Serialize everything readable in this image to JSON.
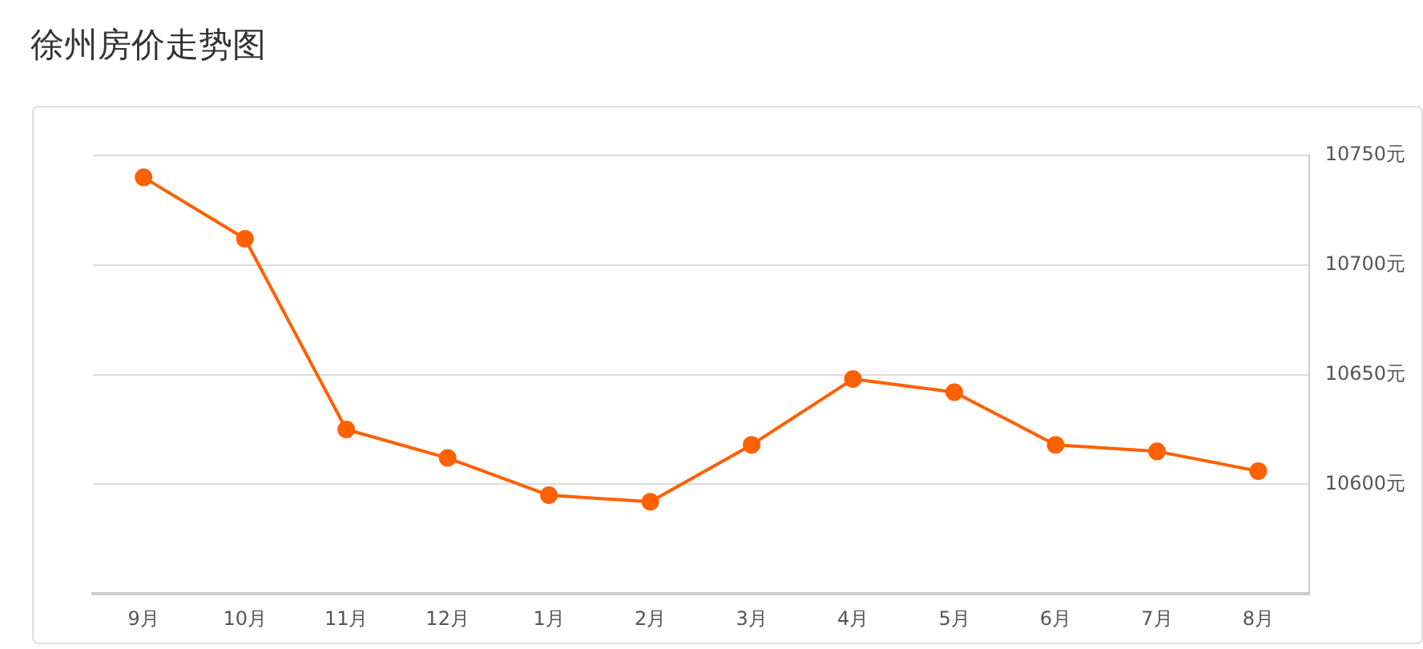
{
  "chart_data": {
    "type": "line",
    "title": "徐州房价走势图",
    "categories": [
      "9月",
      "10月",
      "11月",
      "12月",
      "1月",
      "2月",
      "3月",
      "4月",
      "5月",
      "6月",
      "7月",
      "8月"
    ],
    "series": [
      {
        "color": "#ff6000",
        "values": [
          10740,
          10712,
          10625,
          10612,
          10595,
          10592,
          10618,
          10648,
          10642,
          10618,
          10615,
          10606
        ]
      }
    ],
    "ylim": [
      10550,
      10750
    ],
    "yticks": [
      {
        "value": 10550,
        "label": null
      },
      {
        "value": 10600,
        "label": "10600元"
      },
      {
        "value": 10650,
        "label": "10650元"
      },
      {
        "value": 10700,
        "label": "10700元"
      },
      {
        "value": 10750,
        "label": "10750元"
      }
    ],
    "grid": "y",
    "legend": false,
    "marker": "circle",
    "line_style": "solid"
  }
}
